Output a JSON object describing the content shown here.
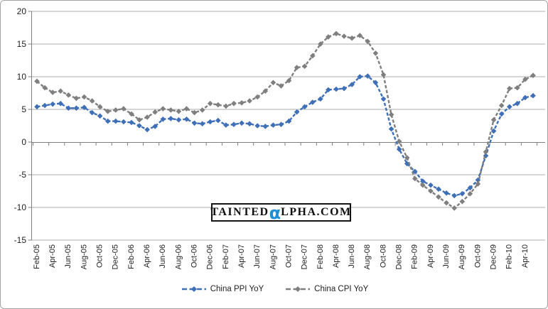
{
  "chart_data": {
    "type": "line",
    "title": "",
    "xlabel": "",
    "ylabel": "",
    "grid": "horizontal",
    "legend_position": "bottom-center",
    "background_color": "#ffffff",
    "gridline_color": "#acacac",
    "axis_color": "#7f7f7f",
    "x_axis": {
      "tick_label_interval": 2,
      "tick_labels": [
        "Feb-05",
        "Apr-05",
        "Jun-05",
        "Aug-05",
        "Oct-05",
        "Dec-05",
        "Feb-06",
        "Apr-06",
        "Jun-06",
        "Aug-06",
        "Oct-06",
        "Dec-06",
        "Feb-07",
        "Apr-07",
        "Jun-07",
        "Aug-07",
        "Oct-07",
        "Dec-07",
        "Feb-08",
        "Apr-08",
        "Jun-08",
        "Aug-08",
        "Oct-08",
        "Dec-08",
        "Feb-09",
        "Apr-09",
        "Jun-09",
        "Aug-09",
        "Oct-09",
        "Dec-09",
        "Feb-10",
        "Apr-10"
      ],
      "categories": [
        "Feb-05",
        "Mar-05",
        "Apr-05",
        "May-05",
        "Jun-05",
        "Jul-05",
        "Aug-05",
        "Sep-05",
        "Oct-05",
        "Nov-05",
        "Dec-05",
        "Jan-06",
        "Feb-06",
        "Mar-06",
        "Apr-06",
        "May-06",
        "Jun-06",
        "Jul-06",
        "Aug-06",
        "Sep-06",
        "Oct-06",
        "Nov-06",
        "Dec-06",
        "Jan-07",
        "Feb-07",
        "Mar-07",
        "Apr-07",
        "May-07",
        "Jun-07",
        "Jul-07",
        "Aug-07",
        "Sep-07",
        "Oct-07",
        "Nov-07",
        "Dec-07",
        "Jan-08",
        "Feb-08",
        "Mar-08",
        "Apr-08",
        "May-08",
        "Jun-08",
        "Jul-08",
        "Aug-08",
        "Sep-08",
        "Oct-08",
        "Nov-08",
        "Dec-08",
        "Jan-09",
        "Feb-09",
        "Mar-09",
        "Apr-09",
        "May-09",
        "Jun-09",
        "Jul-09",
        "Aug-09",
        "Sep-09",
        "Oct-09",
        "Nov-09",
        "Dec-09",
        "Jan-10",
        "Feb-10",
        "Mar-10",
        "Apr-10",
        "May-10"
      ]
    },
    "y_axis": {
      "min": -15,
      "max": 20,
      "step": 5,
      "ticks": [
        20,
        15,
        10,
        5,
        0,
        -5,
        -10,
        -15
      ]
    },
    "series": [
      {
        "name": "China PPI YoY",
        "color": "#3e6fb7",
        "marker": "diamond",
        "line_style": "dashed",
        "values": [
          5.4,
          5.6,
          5.8,
          5.9,
          5.2,
          5.2,
          5.3,
          4.5,
          4.0,
          3.2,
          3.2,
          3.1,
          3.0,
          2.5,
          1.9,
          2.4,
          3.5,
          3.6,
          3.4,
          3.5,
          2.9,
          2.8,
          3.1,
          3.3,
          2.6,
          2.7,
          2.9,
          2.8,
          2.5,
          2.4,
          2.6,
          2.7,
          3.2,
          4.6,
          5.4,
          6.1,
          6.6,
          8.0,
          8.1,
          8.2,
          8.8,
          10.0,
          10.1,
          9.1,
          6.6,
          2.0,
          -1.1,
          -3.3,
          -4.5,
          -6.0,
          -6.6,
          -7.2,
          -7.8,
          -8.2,
          -7.9,
          -7.0,
          -5.8,
          -2.1,
          1.7,
          4.3,
          5.4,
          5.9,
          6.8,
          7.1
        ]
      },
      {
        "name": "China CPI YoY",
        "color": "#7f7f7f",
        "marker": "diamond",
        "line_style": "dashed",
        "values": [
          9.3,
          8.3,
          7.6,
          7.8,
          7.2,
          6.7,
          6.9,
          6.3,
          5.4,
          4.7,
          4.9,
          5.1,
          4.3,
          3.4,
          3.8,
          4.6,
          5.1,
          4.9,
          4.7,
          5.1,
          4.5,
          4.9,
          5.9,
          5.7,
          5.5,
          5.9,
          6.0,
          6.3,
          6.9,
          7.8,
          9.1,
          8.6,
          9.4,
          11.4,
          11.6,
          13.2,
          15.0,
          16.1,
          16.6,
          16.2,
          15.9,
          16.3,
          15.4,
          13.6,
          10.3,
          4.2,
          0.1,
          -2.4,
          -5.6,
          -6.6,
          -7.5,
          -8.4,
          -9.3,
          -10.1,
          -9.1,
          -7.9,
          -6.4,
          -1.5,
          3.4,
          5.6,
          8.2,
          8.3,
          9.6,
          10.2
        ]
      }
    ],
    "watermark": {
      "text_prefix": "TAINTED",
      "text_alpha": "α",
      "text_suffix": "LPHA.COM",
      "alpha_color": "#1c8fd6"
    }
  }
}
